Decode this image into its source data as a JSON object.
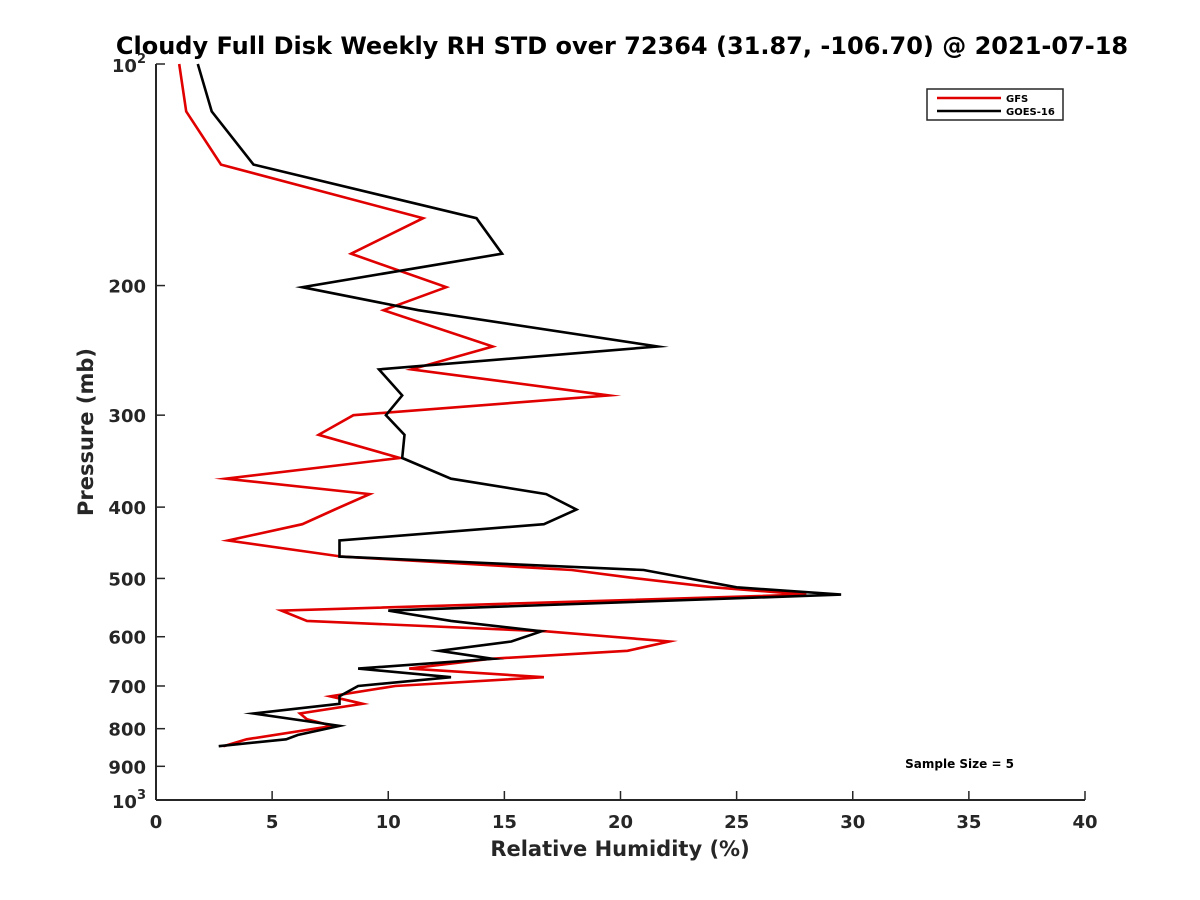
{
  "chart_data": {
    "type": "line",
    "title": "Cloudy Full Disk Weekly RH STD over 72364 (31.87, -106.70) @ 2021-07-18",
    "xlabel": "Relative Humidity (%)",
    "ylabel": "Pressure (mb)",
    "xlim": [
      0,
      40
    ],
    "ylim": [
      100,
      1000
    ],
    "y_scale": "log",
    "y_reversed": true,
    "x_ticks": [
      "0",
      "5",
      "10",
      "15",
      "20",
      "25",
      "30",
      "35",
      "40"
    ],
    "y_ticks": [
      {
        "value": 100,
        "base": "10",
        "exp": "2"
      },
      {
        "value": 200,
        "label": "200"
      },
      {
        "value": 300,
        "label": "300"
      },
      {
        "value": 400,
        "label": "400"
      },
      {
        "value": 500,
        "label": "500"
      },
      {
        "value": 600,
        "label": "600"
      },
      {
        "value": 700,
        "label": "700"
      },
      {
        "value": 800,
        "label": "800"
      },
      {
        "value": 900,
        "label": "900"
      },
      {
        "value": 1000,
        "base": "10",
        "exp": "3"
      }
    ],
    "legend_position": "top-right",
    "series": [
      {
        "name": "GFS",
        "color": "#e00000",
        "points": [
          [
            1.0,
            100
          ],
          [
            1.3,
            116
          ],
          [
            2.8,
            137
          ],
          [
            11.5,
            162
          ],
          [
            8.4,
            181
          ],
          [
            12.5,
            201
          ],
          [
            9.8,
            216
          ],
          [
            14.5,
            242
          ],
          [
            11.0,
            260
          ],
          [
            19.5,
            282
          ],
          [
            8.5,
            300
          ],
          [
            7.0,
            319
          ],
          [
            10.5,
            343
          ],
          [
            3.0,
            366
          ],
          [
            9.2,
            384
          ],
          [
            7.7,
            403
          ],
          [
            6.3,
            422
          ],
          [
            3.1,
            444
          ],
          [
            8.0,
            467
          ],
          [
            17.9,
            487
          ],
          [
            20.5,
            499
          ],
          [
            24.0,
            514
          ],
          [
            28.0,
            526
          ],
          [
            5.4,
            553
          ],
          [
            6.5,
            571
          ],
          [
            16.8,
            590
          ],
          [
            22.1,
            609
          ],
          [
            20.3,
            627
          ],
          [
            14.4,
            643
          ],
          [
            10.9,
            663
          ],
          [
            16.7,
            681
          ],
          [
            10.3,
            700
          ],
          [
            7.5,
            723
          ],
          [
            8.9,
            740
          ],
          [
            6.2,
            763
          ],
          [
            6.5,
            777
          ],
          [
            7.6,
            793
          ],
          [
            3.9,
            827
          ],
          [
            2.9,
            845
          ]
        ]
      },
      {
        "name": "GOES-16",
        "color": "#000000",
        "points": [
          [
            1.8,
            100
          ],
          [
            2.4,
            116
          ],
          [
            4.2,
            137
          ],
          [
            13.8,
            162
          ],
          [
            14.9,
            181
          ],
          [
            6.3,
            201
          ],
          [
            11.3,
            216
          ],
          [
            21.6,
            242
          ],
          [
            9.6,
            260
          ],
          [
            10.6,
            282
          ],
          [
            9.9,
            300
          ],
          [
            10.7,
            319
          ],
          [
            10.6,
            343
          ],
          [
            12.7,
            366
          ],
          [
            16.8,
            384
          ],
          [
            18.1,
            403
          ],
          [
            16.7,
            422
          ],
          [
            7.9,
            444
          ],
          [
            7.9,
            467
          ],
          [
            21.0,
            487
          ],
          [
            25.0,
            514
          ],
          [
            29.5,
            526
          ],
          [
            10.0,
            553
          ],
          [
            12.7,
            571
          ],
          [
            16.6,
            590
          ],
          [
            15.3,
            609
          ],
          [
            12.2,
            627
          ],
          [
            14.5,
            643
          ],
          [
            8.7,
            663
          ],
          [
            12.7,
            681
          ],
          [
            8.7,
            700
          ],
          [
            7.9,
            723
          ],
          [
            7.9,
            740
          ],
          [
            4.2,
            763
          ],
          [
            7.9,
            793
          ],
          [
            6.1,
            816
          ],
          [
            5.6,
            827
          ],
          [
            2.7,
            845
          ]
        ]
      }
    ],
    "annotations": [
      {
        "text": "Sample Size = 5",
        "x": 34.6,
        "y": 893
      }
    ]
  }
}
